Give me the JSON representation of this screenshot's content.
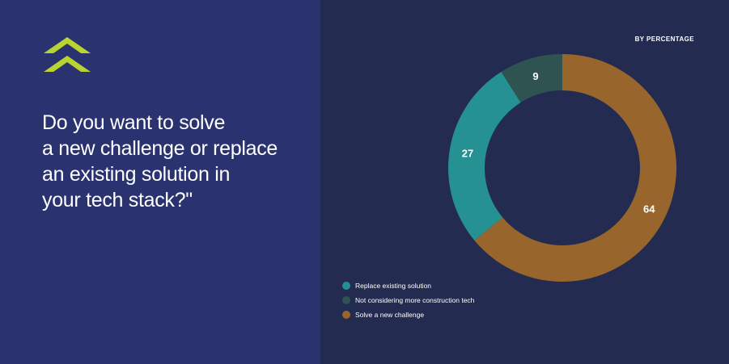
{
  "question": {
    "lines": [
      "Do you want to solve",
      "a new challenge or replace",
      "an existing solution in",
      "your tech stack?\""
    ]
  },
  "logo": {
    "icon": "brand-logo-icon",
    "color": "#b8d430"
  },
  "colors": {
    "left_panel": "#2a3370",
    "right_panel": "#232b50"
  },
  "chart_data": {
    "type": "pie",
    "variant": "donut",
    "units_label": "BY PERCENTAGE",
    "categories": [
      "Replace existing solution",
      "Not considering more construction tech",
      "Solve a new challenge"
    ],
    "values": [
      27,
      9,
      64
    ],
    "data_labels": [
      "27",
      "9",
      "64"
    ],
    "colors": [
      "#259193",
      "#2e5350",
      "#98662c"
    ],
    "legend_position": "bottom-left"
  }
}
